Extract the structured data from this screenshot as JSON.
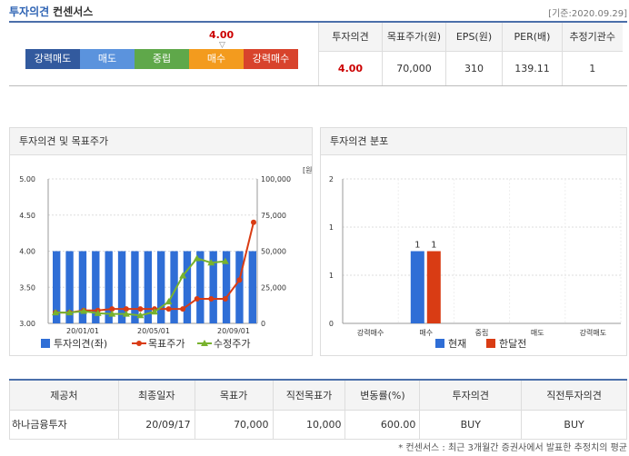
{
  "header": {
    "title_main": "투자의견",
    "title_sub": "컨센서스",
    "date": "[기준:2020.09.29]"
  },
  "opinion": {
    "value": "4.00",
    "scale": [
      {
        "label": "강력매도",
        "color": "#325a9e"
      },
      {
        "label": "매도",
        "color": "#5b93dd"
      },
      {
        "label": "중립",
        "color": "#5fa84a"
      },
      {
        "label": "매수",
        "color": "#f39b1e"
      },
      {
        "label": "강력매수",
        "color": "#d8432c"
      }
    ]
  },
  "summary": {
    "headers": [
      "투자의견",
      "목표주가(원)",
      "EPS(원)",
      "PER(배)",
      "추정기관수"
    ],
    "values": [
      "4.00",
      "70,000",
      "310",
      "139.11",
      "1"
    ]
  },
  "panel_left": {
    "title": "투자의견 및 목표주가"
  },
  "panel_right": {
    "title": "투자의견 분포"
  },
  "chart_data": [
    {
      "type": "bar",
      "unit_label": "[원]",
      "x_ticks": [
        "20/01/01",
        "20/05/01",
        "20/09/01"
      ],
      "y_left": {
        "min": 3.0,
        "max": 5.0,
        "ticks": [
          "3.00",
          "3.50",
          "4.00",
          "4.50",
          "5.00"
        ]
      },
      "y_right": {
        "min": 0,
        "max": 100000,
        "ticks": [
          "0",
          "25,000",
          "50,000",
          "75,000",
          "100,000"
        ]
      },
      "series": [
        {
          "name": "투자의견(좌)",
          "color": "#2f6ed6",
          "values": [
            4,
            4,
            4,
            4,
            4,
            4,
            4,
            4,
            4,
            4,
            4,
            4,
            4,
            4,
            4,
            4
          ]
        },
        {
          "name": "목표주가",
          "color": "#d93c14",
          "values": [
            7500,
            7500,
            9000,
            9000,
            10000,
            10000,
            10000,
            10000,
            10000,
            10000,
            17000,
            17000,
            17000,
            30000,
            70000
          ]
        },
        {
          "name": "수정주가",
          "color": "#78b22e",
          "values": [
            7500,
            7500,
            8500,
            7000,
            6500,
            6500,
            5500,
            8000,
            15000,
            33000,
            45000,
            42000,
            43000
          ]
        }
      ]
    },
    {
      "type": "bar",
      "y": {
        "min": 0,
        "max": 2,
        "ticks": [
          "0",
          "1",
          "1",
          "2"
        ]
      },
      "categories": [
        "강력매수",
        "매수",
        "중립",
        "매도",
        "강력매도"
      ],
      "series": [
        {
          "name": "현재",
          "color": "#2f6ed6",
          "values": [
            0,
            1,
            0,
            0,
            0
          ]
        },
        {
          "name": "한달전",
          "color": "#d93c14",
          "values": [
            0,
            1,
            0,
            0,
            0
          ]
        }
      ]
    }
  ],
  "detail": {
    "headers": [
      "제공처",
      "최종일자",
      "목표가",
      "직전목표가",
      "변동률(%)",
      "투자의견",
      "직전투자의견"
    ],
    "row": [
      "하나금융투자",
      "20/09/17",
      "70,000",
      "10,000",
      "600.00",
      "BUY",
      "BUY"
    ]
  },
  "footnote": "* 컨센서스 : 최근 3개월간 증권사에서 발표한 추정치의 평균"
}
